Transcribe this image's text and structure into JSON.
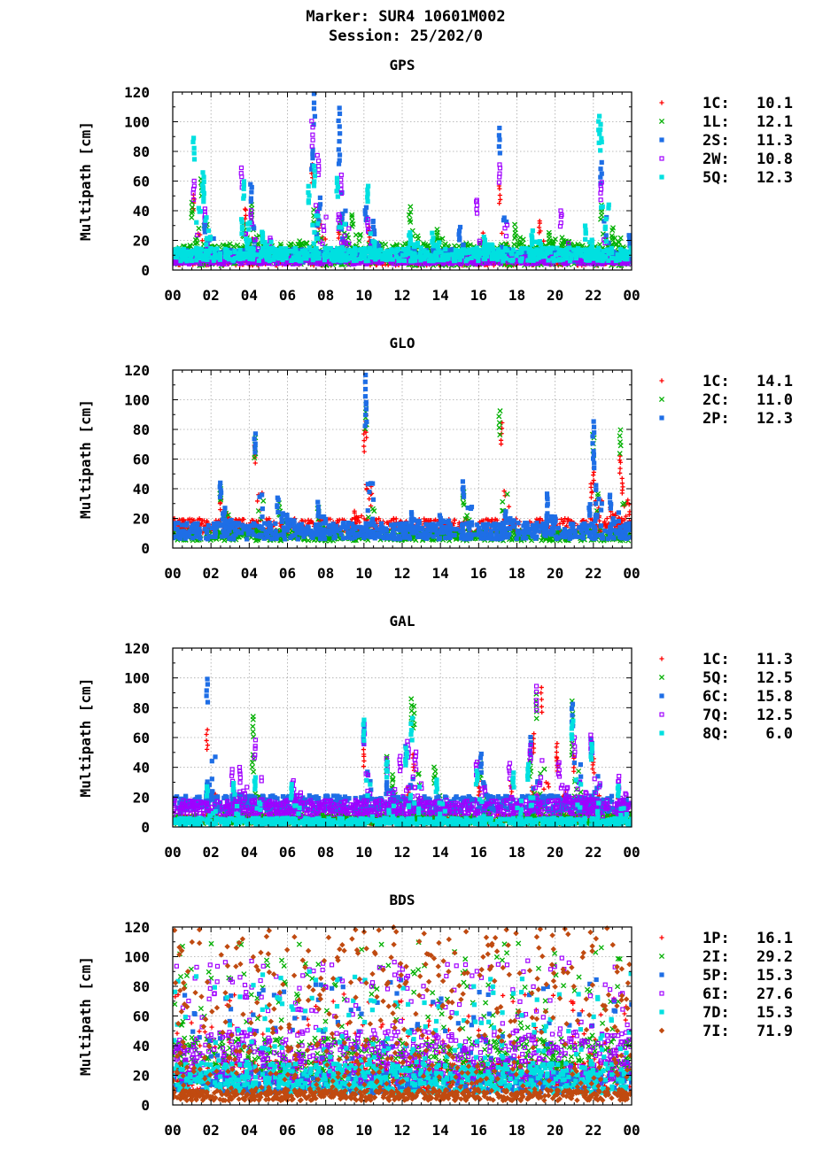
{
  "header": {
    "line1": "Marker: SUR4 10601M002",
    "line2": "Session: 25/202/0"
  },
  "chart_data": [
    {
      "type": "scatter",
      "title": "GPS",
      "ylabel": "Multipath [cm]",
      "xlabel": "",
      "xlim": [
        0,
        24
      ],
      "ylim": [
        0,
        120
      ],
      "x_ticks": [
        "00",
        "02",
        "04",
        "06",
        "08",
        "10",
        "12",
        "14",
        "16",
        "18",
        "20",
        "22",
        "00"
      ],
      "y_ticks": [
        "0",
        "20",
        "40",
        "60",
        "80",
        "100",
        "120"
      ],
      "grid": true,
      "legend_position": "right",
      "series": [
        {
          "name": "1C",
          "rms": "10.1",
          "marker": "plus",
          "color": "#ff0000",
          "base": [
            3,
            11
          ],
          "spikes": [
            [
              1.1,
              50
            ],
            [
              3.8,
              42
            ],
            [
              7.3,
              72
            ],
            [
              7.6,
              42
            ],
            [
              8.7,
              30
            ],
            [
              10.3,
              28
            ],
            [
              10.5,
              20
            ],
            [
              16.2,
              24
            ],
            [
              17.1,
              57
            ],
            [
              19.2,
              33
            ]
          ]
        },
        {
          "name": "1L",
          "rms": "12.1",
          "marker": "cross",
          "color": "#00b000",
          "base": [
            3,
            18
          ],
          "spikes": [
            [
              1.0,
              45
            ],
            [
              1.5,
              62
            ],
            [
              3.7,
              30
            ],
            [
              4.1,
              45
            ],
            [
              6.6,
              20
            ],
            [
              7.4,
              40
            ],
            [
              8.8,
              36
            ],
            [
              9.4,
              38
            ],
            [
              12.4,
              42
            ],
            [
              13.8,
              28
            ],
            [
              17.9,
              30
            ],
            [
              19.7,
              26
            ],
            [
              20.4,
              22
            ],
            [
              22.4,
              44
            ],
            [
              23.0,
              28
            ]
          ]
        },
        {
          "name": "2S",
          "rms": "11.3",
          "marker": "square",
          "color": "#1e6ee6",
          "base": [
            5,
            14
          ],
          "spikes": [
            [
              1.7,
              34
            ],
            [
              4.1,
              58
            ],
            [
              7.4,
              118
            ],
            [
              7.3,
              82
            ],
            [
              8.7,
              110
            ],
            [
              8.7,
              86
            ],
            [
              10.1,
              43
            ],
            [
              10.5,
              34
            ],
            [
              15.0,
              28
            ],
            [
              17.1,
              95
            ],
            [
              22.4,
              72
            ],
            [
              23.9,
              23
            ]
          ]
        },
        {
          "name": "2W",
          "rms": "10.8",
          "marker": "opensquare",
          "color": "#a000ff",
          "base": [
            4,
            9
          ],
          "spikes": [
            [
              1.1,
              60
            ],
            [
              1.7,
              42
            ],
            [
              3.6,
              69
            ],
            [
              4.1,
              40
            ],
            [
              5.1,
              22
            ],
            [
              7.3,
              100
            ],
            [
              7.6,
              78
            ],
            [
              8.8,
              64
            ],
            [
              8.7,
              38
            ],
            [
              10.2,
              34
            ],
            [
              15.9,
              48
            ],
            [
              17.1,
              72
            ],
            [
              20.3,
              40
            ],
            [
              22.4,
              60
            ]
          ]
        },
        {
          "name": "5Q",
          "rms": "12.3",
          "marker": "square",
          "color": "#00e0e0",
          "base": [
            6,
            15
          ],
          "spikes": [
            [
              1.1,
              90
            ],
            [
              1.6,
              66
            ],
            [
              1.6,
              58
            ],
            [
              3.7,
              60
            ],
            [
              3.6,
              34
            ],
            [
              4.7,
              26
            ],
            [
              7.1,
              56
            ],
            [
              7.4,
              70
            ],
            [
              8.6,
              62
            ],
            [
              10.2,
              57
            ],
            [
              12.4,
              26
            ],
            [
              13.6,
              24
            ],
            [
              16.3,
              22
            ],
            [
              18.8,
              26
            ],
            [
              21.6,
              30
            ],
            [
              22.3,
              104
            ],
            [
              22.4,
              98
            ]
          ]
        }
      ]
    },
    {
      "type": "scatter",
      "title": "GLO",
      "ylabel": "Multipath [cm]",
      "xlabel": "",
      "xlim": [
        0,
        24
      ],
      "ylim": [
        0,
        120
      ],
      "x_ticks": [
        "00",
        "02",
        "04",
        "06",
        "08",
        "10",
        "12",
        "14",
        "16",
        "18",
        "20",
        "22",
        "00"
      ],
      "y_ticks": [
        "0",
        "20",
        "40",
        "60",
        "80",
        "100",
        "120"
      ],
      "grid": true,
      "legend_position": "right",
      "series": [
        {
          "name": "1C",
          "rms": "14.1",
          "marker": "plus",
          "color": "#ff0000",
          "base": [
            10,
            20
          ],
          "spikes": [
            [
              2.5,
              36
            ],
            [
              4.3,
              70
            ],
            [
              9.5,
              25
            ],
            [
              10.0,
              80
            ],
            [
              10.1,
              90
            ],
            [
              17.2,
              84
            ],
            [
              21.9,
              44
            ],
            [
              22.0,
              54
            ],
            [
              22.9,
              30
            ],
            [
              23.4,
              63
            ],
            [
              23.5,
              47
            ]
          ]
        },
        {
          "name": "2C",
          "rms": "11.0",
          "marker": "cross",
          "color": "#00b000",
          "base": [
            5,
            12
          ],
          "spikes": [
            [
              2.5,
              42
            ],
            [
              2.7,
              24
            ],
            [
              4.3,
              74
            ],
            [
              5.6,
              30
            ],
            [
              7.6,
              28
            ],
            [
              10.1,
              96
            ],
            [
              15.2,
              38
            ],
            [
              17.1,
              93
            ],
            [
              22.0,
              77
            ],
            [
              23.4,
              79
            ]
          ]
        },
        {
          "name": "2P",
          "rms": "12.3",
          "marker": "square",
          "color": "#1e6ee6",
          "base": [
            6,
            17
          ],
          "spikes": [
            [
              2.5,
              44
            ],
            [
              2.7,
              26
            ],
            [
              4.3,
              78
            ],
            [
              5.5,
              34
            ],
            [
              6.0,
              22
            ],
            [
              7.6,
              30
            ],
            [
              10.1,
              116
            ],
            [
              10.1,
              98
            ],
            [
              12.5,
              24
            ],
            [
              14.0,
              23
            ],
            [
              15.2,
              44
            ],
            [
              17.4,
              25
            ],
            [
              19.6,
              37
            ],
            [
              19.6,
              24
            ],
            [
              21.8,
              30
            ],
            [
              22.0,
              86
            ],
            [
              22.0,
              66
            ],
            [
              22.9,
              36
            ]
          ]
        }
      ]
    },
    {
      "type": "scatter",
      "title": "GAL",
      "ylabel": "Multipath [cm]",
      "xlabel": "",
      "xlim": [
        0,
        24
      ],
      "ylim": [
        0,
        120
      ],
      "x_ticks": [
        "00",
        "02",
        "04",
        "06",
        "08",
        "10",
        "12",
        "14",
        "16",
        "18",
        "20",
        "22",
        "00"
      ],
      "y_ticks": [
        "0",
        "20",
        "40",
        "60",
        "80",
        "100",
        "120"
      ],
      "grid": true,
      "legend_position": "right",
      "series": [
        {
          "name": "1C",
          "rms": "11.3",
          "marker": "plus",
          "color": "#ff0000",
          "base": [
            2,
            8
          ],
          "spikes": [
            [
              1.8,
              65
            ],
            [
              10.0,
              52
            ],
            [
              12.3,
              26
            ],
            [
              12.6,
              48
            ],
            [
              16.0,
              30
            ],
            [
              17.7,
              30
            ],
            [
              18.8,
              26
            ],
            [
              18.9,
              62
            ],
            [
              19.3,
              93
            ],
            [
              20.1,
              56
            ],
            [
              20.1,
              47
            ],
            [
              21.0,
              48
            ],
            [
              22.0,
              46
            ],
            [
              23.3,
              22
            ]
          ]
        },
        {
          "name": "5Q",
          "rms": "12.5",
          "marker": "cross",
          "color": "#00b000",
          "base": [
            2,
            9
          ],
          "spikes": [
            [
              4.2,
              75
            ],
            [
              4.2,
              48
            ],
            [
              11.2,
              48
            ],
            [
              11.5,
              35
            ],
            [
              12.5,
              85
            ],
            [
              12.6,
              80
            ],
            [
              13.7,
              40
            ],
            [
              16.1,
              42
            ],
            [
              18.7,
              45
            ],
            [
              19.0,
              89
            ],
            [
              20.9,
              84
            ],
            [
              20.9,
              60
            ]
          ]
        },
        {
          "name": "6C",
          "rms": "15.8",
          "marker": "square",
          "color": "#1e6ee6",
          "base": [
            10,
            21
          ],
          "spikes": [
            [
              1.8,
              100
            ],
            [
              1.8,
              30
            ],
            [
              3.2,
              25
            ],
            [
              10.0,
              70
            ],
            [
              11.2,
              30
            ],
            [
              12.2,
              54
            ],
            [
              16.1,
              48
            ],
            [
              18.7,
              60
            ],
            [
              20.9,
              82
            ],
            [
              21.9,
              60
            ]
          ]
        },
        {
          "name": "7Q",
          "rms": "12.5",
          "marker": "opensquare",
          "color": "#a000ff",
          "base": [
            7,
            18
          ],
          "spikes": [
            [
              3.1,
              38
            ],
            [
              3.5,
              40
            ],
            [
              4.3,
              58
            ],
            [
              6.3,
              32
            ],
            [
              10.0,
              68
            ],
            [
              11.2,
              46
            ],
            [
              11.9,
              48
            ],
            [
              12.3,
              58
            ],
            [
              12.7,
              50
            ],
            [
              15.9,
              44
            ],
            [
              17.6,
              43
            ],
            [
              18.7,
              55
            ],
            [
              19.0,
              94
            ],
            [
              20.2,
              44
            ],
            [
              20.6,
              25
            ],
            [
              21.0,
              60
            ],
            [
              21.6,
              24
            ],
            [
              21.9,
              62
            ],
            [
              23.3,
              34
            ]
          ]
        },
        {
          "name": "8Q",
          "rms": "6.0",
          "marker": "square",
          "color": "#00e0e0",
          "base": [
            1,
            6
          ],
          "spikes": [
            [
              1.8,
              28
            ],
            [
              3.2,
              30
            ],
            [
              4.3,
              34
            ],
            [
              6.2,
              28
            ],
            [
              10.0,
              72
            ],
            [
              11.2,
              44
            ],
            [
              12.2,
              52
            ],
            [
              12.5,
              72
            ],
            [
              13.8,
              32
            ],
            [
              15.9,
              38
            ],
            [
              17.8,
              36
            ],
            [
              18.6,
              42
            ],
            [
              20.9,
              72
            ],
            [
              21.9,
              56
            ],
            [
              23.3,
              28
            ]
          ]
        }
      ]
    },
    {
      "type": "scatter",
      "title": "BDS",
      "ylabel": "Multipath [cm]",
      "xlabel": "",
      "xlim": [
        0,
        24
      ],
      "ylim": [
        0,
        120
      ],
      "x_ticks": [
        "00",
        "02",
        "04",
        "06",
        "08",
        "10",
        "12",
        "14",
        "16",
        "18",
        "20",
        "22",
        "00"
      ],
      "y_ticks": [
        "0",
        "20",
        "40",
        "60",
        "80",
        "100",
        "120"
      ],
      "grid": true,
      "legend_position": "right",
      "series": [
        {
          "name": "1P",
          "rms": "16.1",
          "marker": "plus",
          "color": "#ff0000",
          "base": [
            10,
            30
          ],
          "scatter": [
            18,
            75,
            150
          ]
        },
        {
          "name": "2I",
          "rms": "29.2",
          "marker": "cross",
          "color": "#00b000",
          "base": [
            15,
            45
          ],
          "scatter": [
            20,
            110,
            200
          ]
        },
        {
          "name": "5P",
          "rms": "15.3",
          "marker": "square",
          "color": "#1e6ee6",
          "base": [
            8,
            22
          ],
          "scatter": [
            15,
            85,
            120
          ]
        },
        {
          "name": "6I",
          "rms": "27.6",
          "marker": "opensquare",
          "color": "#a000ff",
          "base": [
            15,
            50
          ],
          "scatter": [
            20,
            100,
            260
          ]
        },
        {
          "name": "7D",
          "rms": "15.3",
          "marker": "square",
          "color": "#00e0e0",
          "base": [
            8,
            28
          ],
          "scatter": [
            12,
            90,
            180
          ]
        },
        {
          "name": "7I",
          "rms": "71.9",
          "marker": "diamond",
          "color": "#c04a10",
          "base": [
            3,
            10
          ],
          "scatter": [
            10,
            120,
            420
          ]
        }
      ]
    }
  ]
}
